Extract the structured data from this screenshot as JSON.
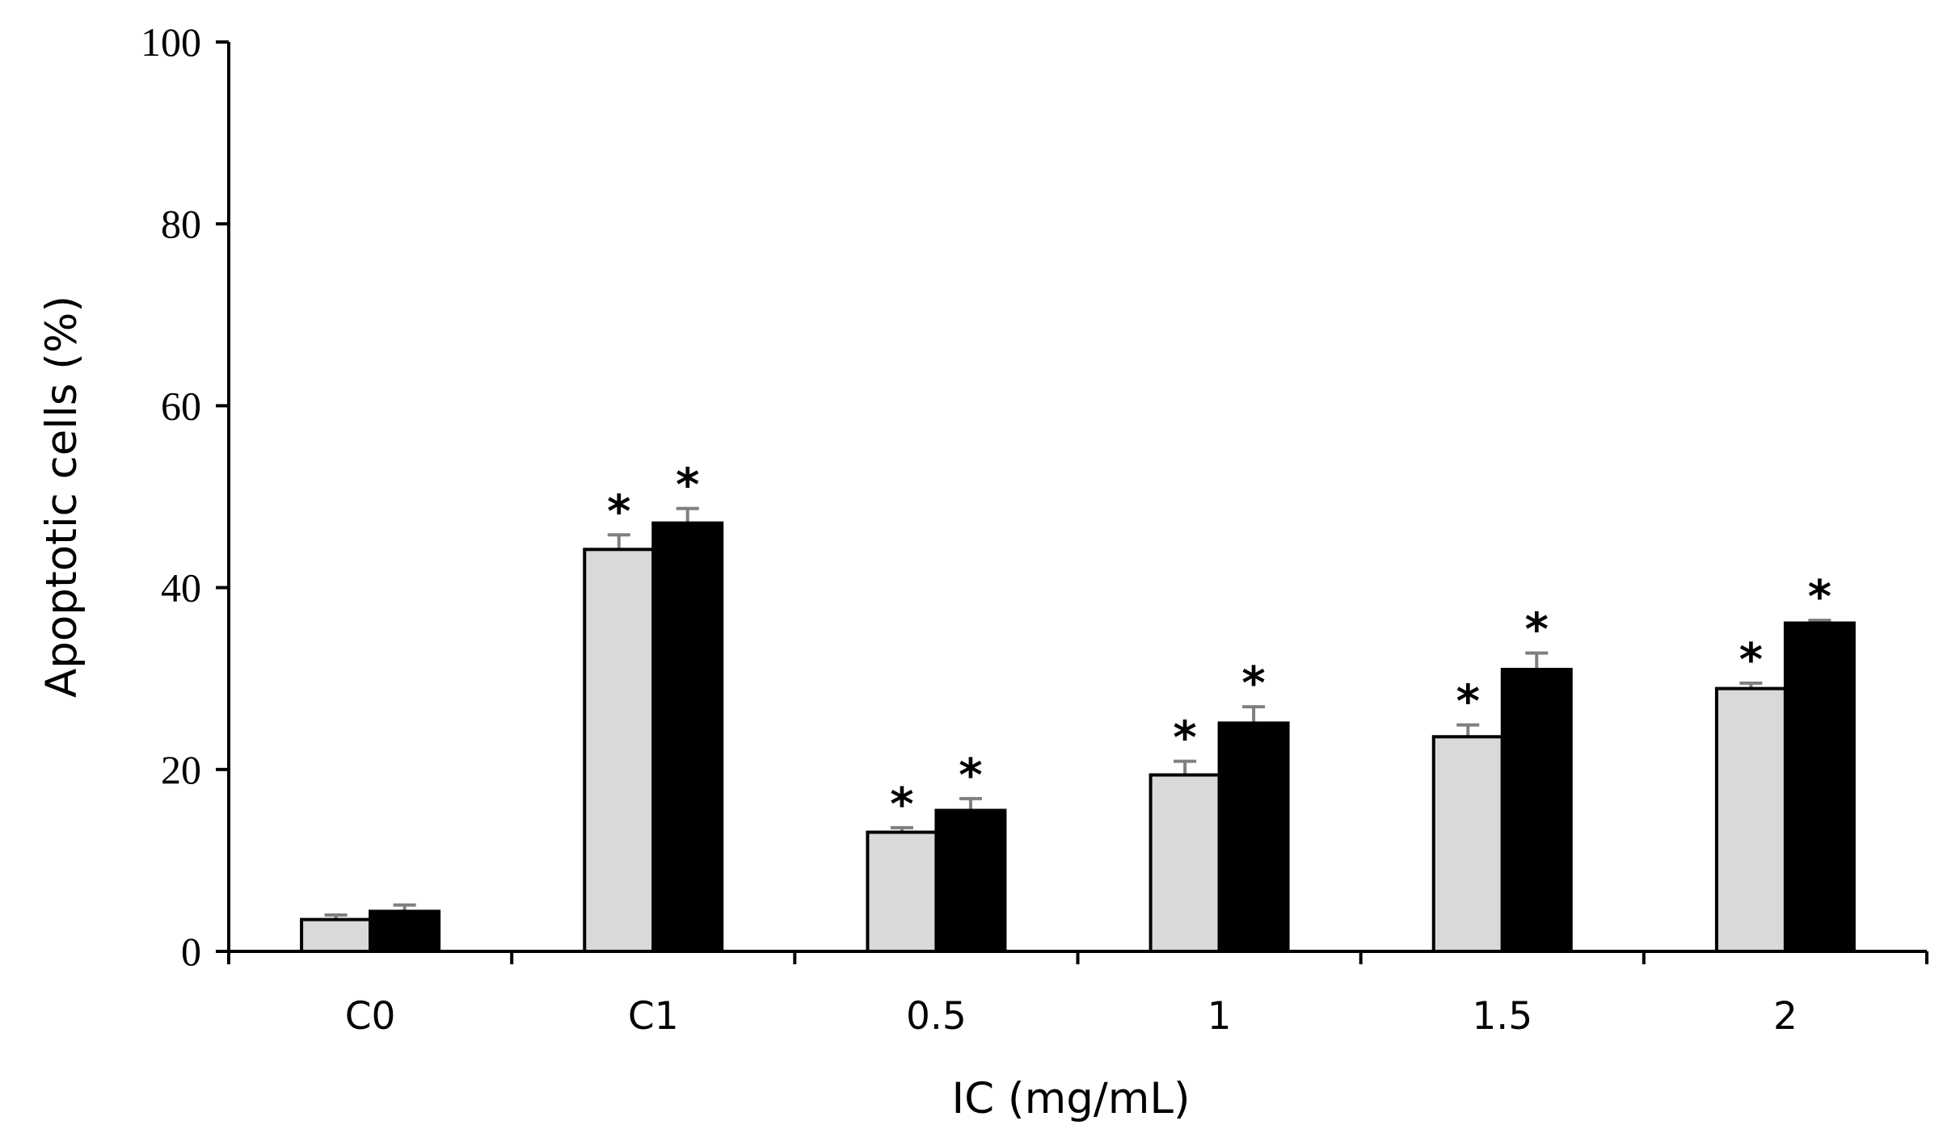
{
  "chart_data": {
    "type": "bar",
    "title": "",
    "xlabel": "IC (mg/mL)",
    "ylabel": "Apoptotic cells (%)",
    "ylim": [
      0,
      100
    ],
    "yticks": [
      "0",
      "20",
      "40",
      "60",
      "80",
      "100"
    ],
    "categories": [
      "C0",
      "C1",
      "0.5",
      "1",
      "1.5",
      "2"
    ],
    "legend": "none",
    "grid": false,
    "significance_marker": "*",
    "series": [
      {
        "name": "series-light",
        "color": "#d9d9d9",
        "values": [
          3.5,
          44.2,
          13.1,
          19.4,
          23.6,
          28.9
        ],
        "errors": [
          0.5,
          1.6,
          0.5,
          1.5,
          1.3,
          0.6
        ],
        "significant": [
          false,
          true,
          true,
          true,
          true,
          true
        ]
      },
      {
        "name": "series-dark",
        "color": "#000000",
        "values": [
          4.4,
          47.1,
          15.5,
          25.1,
          31.0,
          36.1
        ],
        "errors": [
          0.7,
          1.6,
          1.3,
          1.8,
          1.8,
          0.3
        ],
        "significant": [
          false,
          true,
          true,
          true,
          true,
          true
        ]
      }
    ]
  }
}
